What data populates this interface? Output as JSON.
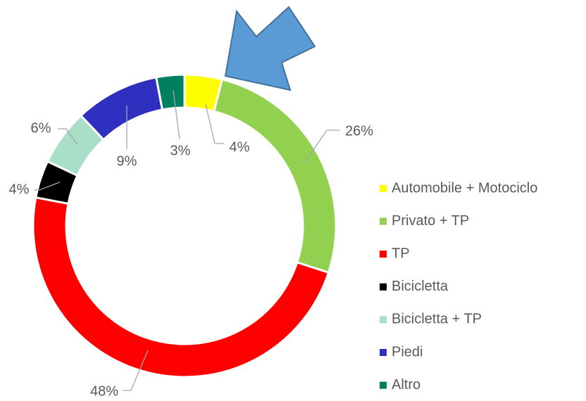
{
  "chart_data": {
    "type": "pie",
    "categories": [
      "Automobile + Motociclo",
      "Privato + TP",
      "TP",
      "Bicicletta",
      "Bicicletta + TP",
      "Piedi",
      "Altro"
    ],
    "values": [
      4,
      26,
      48,
      4,
      6,
      9,
      3
    ],
    "value_labels": [
      "4%",
      "26%",
      "48%",
      "4%",
      "6%",
      "9%",
      "3%"
    ],
    "colors": [
      "#ffff00",
      "#92d050",
      "#ff0000",
      "#000000",
      "#a9dfc7",
      "#3030c0",
      "#008060"
    ],
    "legend": "right"
  }
}
